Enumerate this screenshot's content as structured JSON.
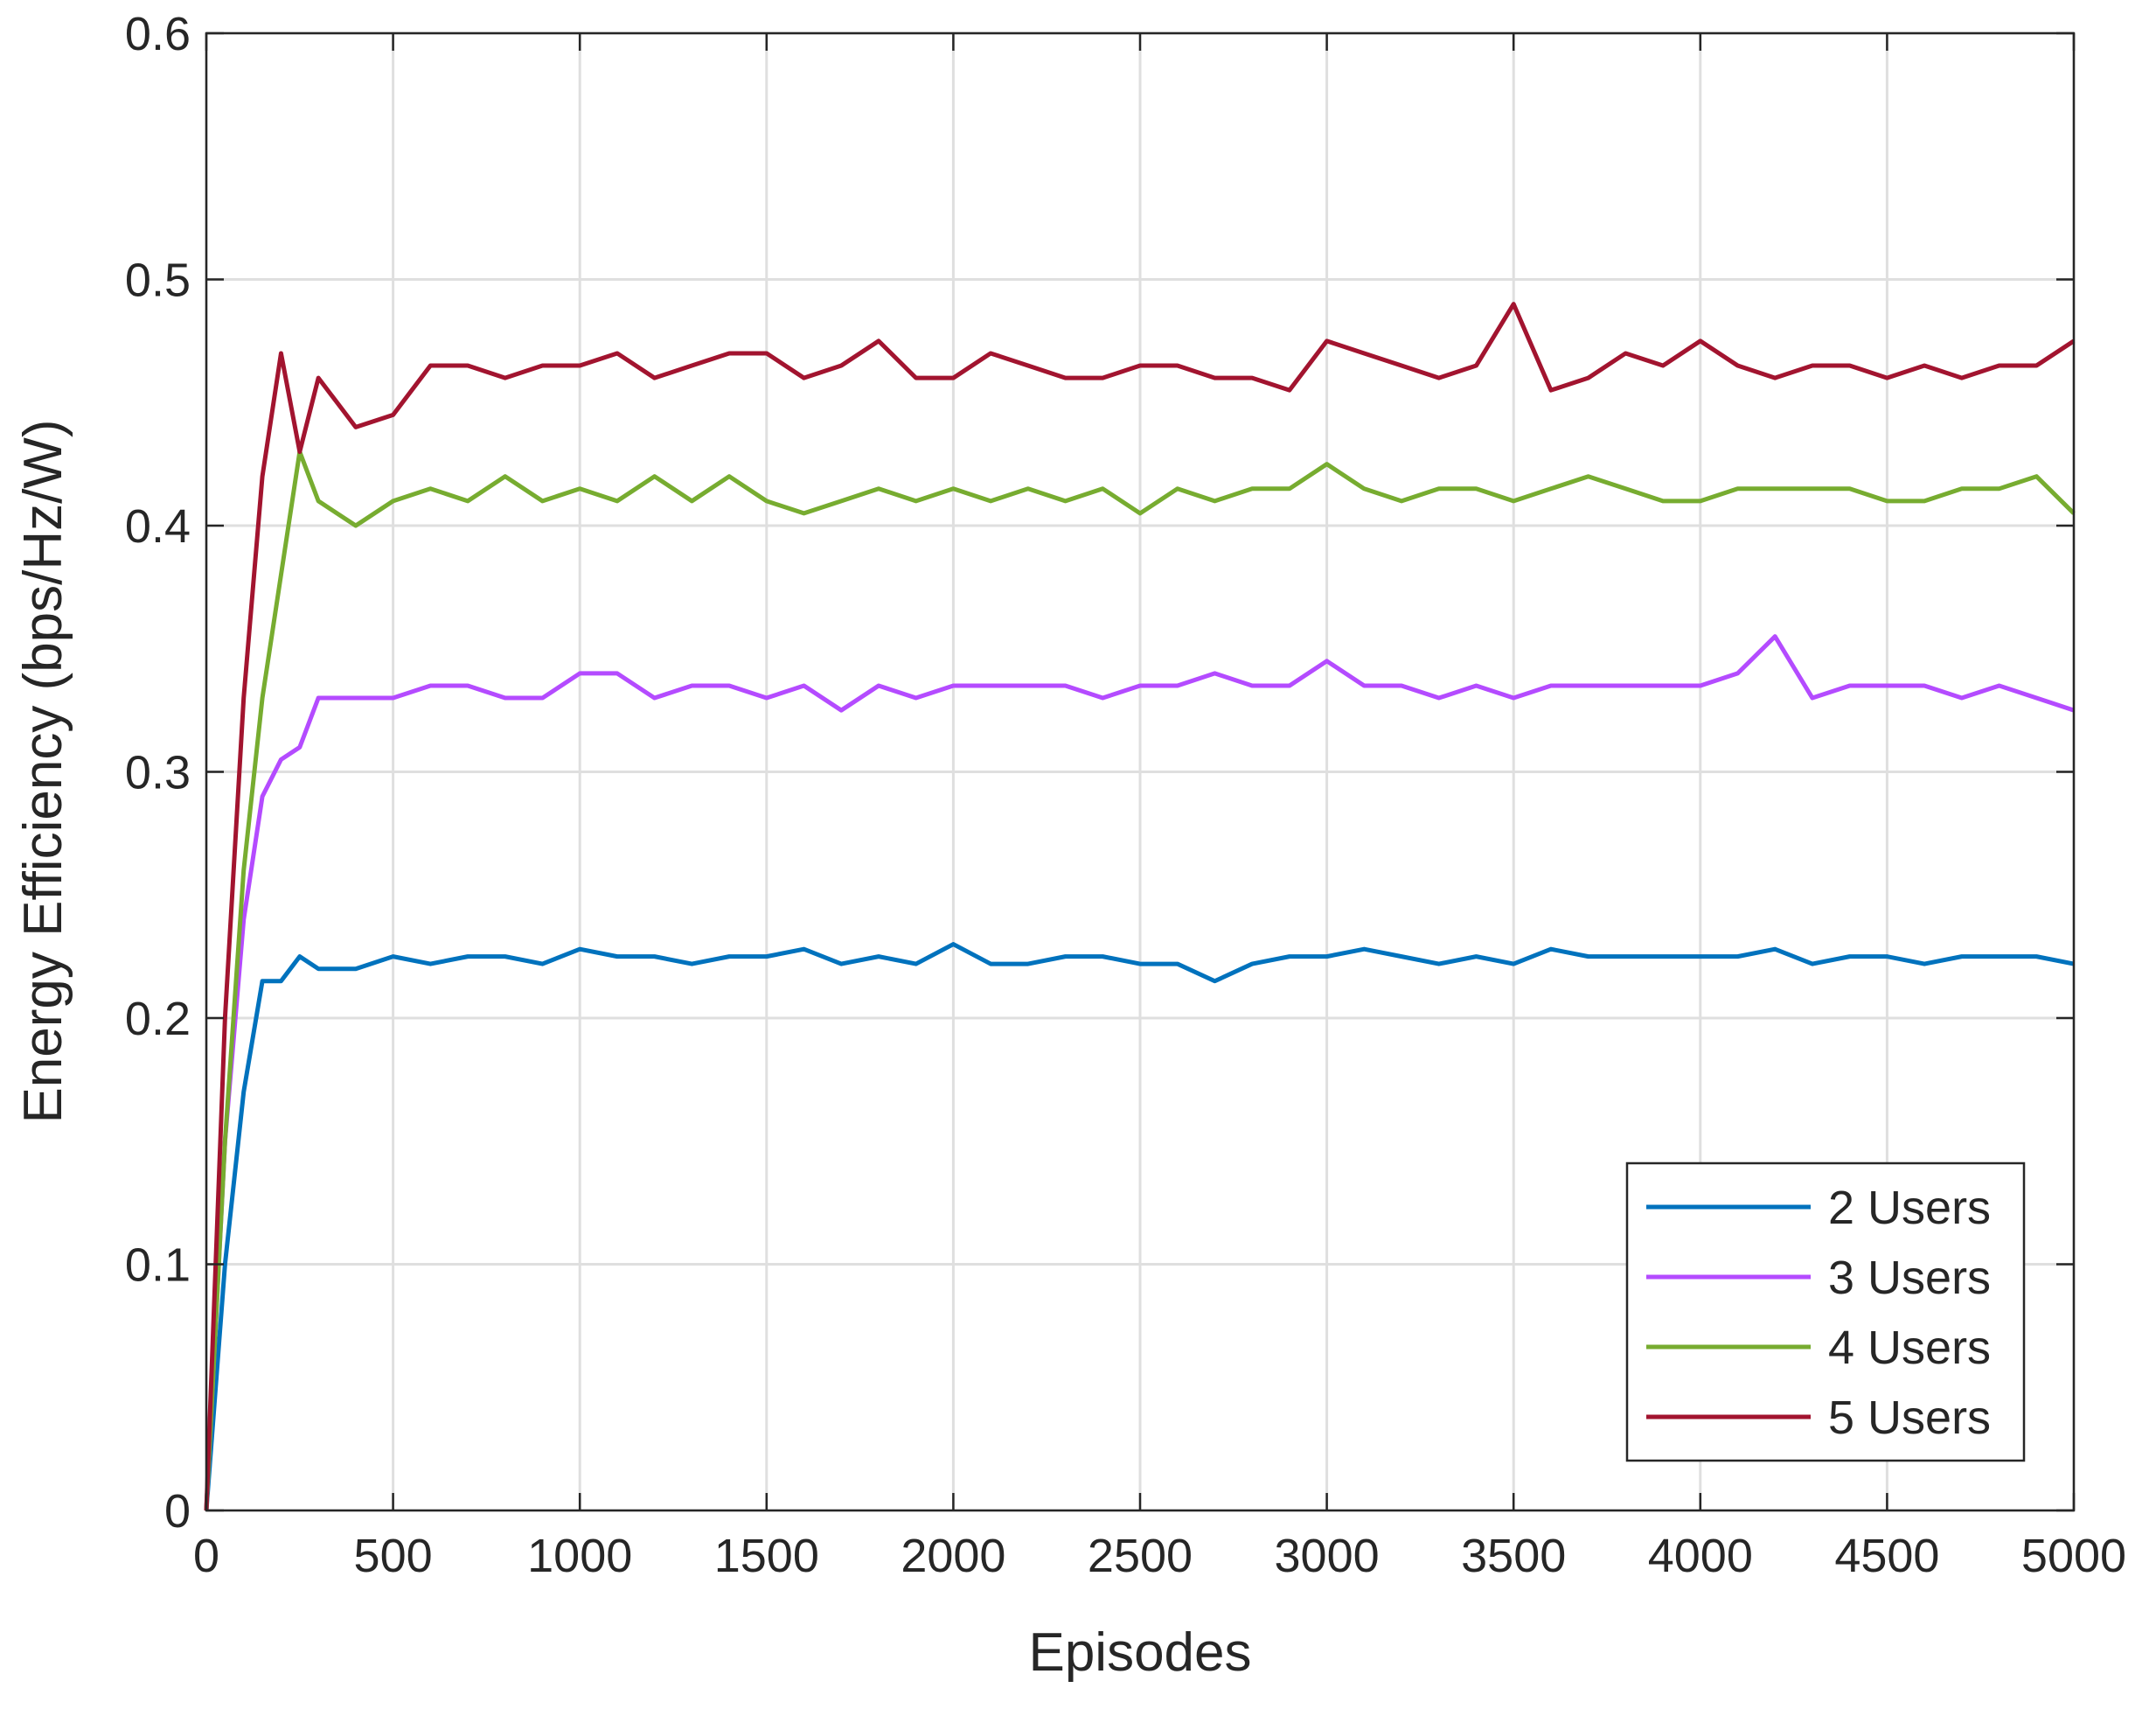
{
  "chart_data": {
    "type": "line",
    "xlabel": "Episodes",
    "ylabel": "Energy Efficiency (bps/Hz/W)",
    "x": [
      0,
      50,
      100,
      150,
      200,
      250,
      300,
      400,
      500,
      600,
      700,
      800,
      900,
      1000,
      1100,
      1200,
      1300,
      1400,
      1500,
      1600,
      1700,
      1800,
      1900,
      2000,
      2100,
      2200,
      2300,
      2400,
      2500,
      2600,
      2700,
      2800,
      2900,
      3000,
      3100,
      3200,
      3300,
      3400,
      3500,
      3600,
      3700,
      3800,
      3900,
      4000,
      4100,
      4200,
      4300,
      4400,
      4500,
      4600,
      4700,
      4800,
      4900,
      5000
    ],
    "series": [
      {
        "name": "2 Users",
        "color": "#0072bd",
        "values": [
          0,
          0.1,
          0.17,
          0.215,
          0.215,
          0.225,
          0.22,
          0.22,
          0.225,
          0.222,
          0.225,
          0.225,
          0.222,
          0.228,
          0.225,
          0.225,
          0.222,
          0.225,
          0.225,
          0.228,
          0.222,
          0.225,
          0.222,
          0.23,
          0.222,
          0.222,
          0.225,
          0.225,
          0.222,
          0.222,
          0.215,
          0.222,
          0.225,
          0.225,
          0.228,
          0.225,
          0.222,
          0.225,
          0.222,
          0.228,
          0.225,
          0.225,
          0.225,
          0.225,
          0.225,
          0.228,
          0.222,
          0.225,
          0.225,
          0.222,
          0.225,
          0.225,
          0.225,
          0.222
        ]
      },
      {
        "name": "3 Users",
        "color": "#b44bff",
        "values": [
          0,
          0.15,
          0.24,
          0.29,
          0.305,
          0.31,
          0.33,
          0.33,
          0.33,
          0.335,
          0.335,
          0.33,
          0.33,
          0.34,
          0.34,
          0.33,
          0.335,
          0.335,
          0.33,
          0.335,
          0.325,
          0.335,
          0.33,
          0.335,
          0.335,
          0.335,
          0.335,
          0.33,
          0.335,
          0.335,
          0.34,
          0.335,
          0.335,
          0.345,
          0.335,
          0.335,
          0.33,
          0.335,
          0.33,
          0.335,
          0.335,
          0.335,
          0.335,
          0.335,
          0.34,
          0.355,
          0.33,
          0.335,
          0.335,
          0.335,
          0.33,
          0.335,
          0.33,
          0.325
        ]
      },
      {
        "name": "4 Users",
        "color": "#77ac30",
        "values": [
          0,
          0.15,
          0.26,
          0.33,
          0.38,
          0.43,
          0.41,
          0.4,
          0.41,
          0.415,
          0.41,
          0.42,
          0.41,
          0.415,
          0.41,
          0.42,
          0.41,
          0.42,
          0.41,
          0.405,
          0.41,
          0.415,
          0.41,
          0.415,
          0.41,
          0.415,
          0.41,
          0.415,
          0.405,
          0.415,
          0.41,
          0.415,
          0.415,
          0.425,
          0.415,
          0.41,
          0.415,
          0.415,
          0.41,
          0.415,
          0.42,
          0.415,
          0.41,
          0.41,
          0.415,
          0.415,
          0.415,
          0.415,
          0.41,
          0.41,
          0.415,
          0.415,
          0.42,
          0.405
        ]
      },
      {
        "name": "5 Users",
        "color": "#a2142f",
        "values": [
          0,
          0.2,
          0.33,
          0.42,
          0.47,
          0.43,
          0.46,
          0.44,
          0.445,
          0.465,
          0.465,
          0.46,
          0.465,
          0.465,
          0.47,
          0.46,
          0.465,
          0.47,
          0.47,
          0.46,
          0.465,
          0.475,
          0.46,
          0.46,
          0.47,
          0.465,
          0.46,
          0.46,
          0.465,
          0.465,
          0.46,
          0.46,
          0.455,
          0.475,
          0.47,
          0.465,
          0.46,
          0.465,
          0.49,
          0.455,
          0.46,
          0.47,
          0.465,
          0.475,
          0.465,
          0.46,
          0.465,
          0.465,
          0.46,
          0.465,
          0.46,
          0.465,
          0.465,
          0.475
        ]
      }
    ],
    "xlim": [
      0,
      5000
    ],
    "xticks": [
      0,
      500,
      1000,
      1500,
      2000,
      2500,
      3000,
      3500,
      4000,
      4500,
      5000
    ],
    "ylim": [
      0,
      0.6
    ],
    "yticks": [
      0,
      0.1,
      0.2,
      0.3,
      0.4,
      0.5,
      0.6
    ],
    "grid": true,
    "legend": "lower right"
  }
}
